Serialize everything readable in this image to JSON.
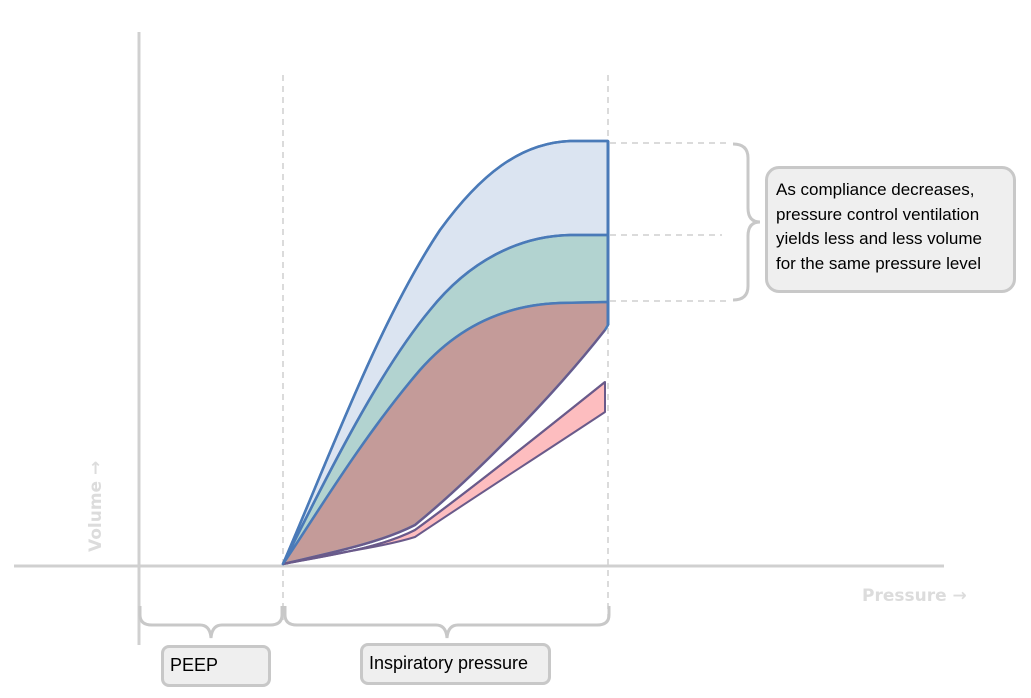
{
  "diagram": {
    "axes": {
      "x_label": "Pressure →",
      "y_label": "Volume →"
    },
    "callout": {
      "lines": [
        "As compliance decreases,",
        "pressure control ventilation",
        "yields less and less volume",
        "for the same pressure level"
      ]
    },
    "labels": {
      "peep": "PEEP",
      "inspiratory_pressure": "Inspiratory pressure"
    },
    "colors": {
      "outline": "#4a7ab8",
      "high_compliance_fill": "#dbe4f1",
      "medium_compliance_fill": "#b2d3d0",
      "low_compliance_fill": "#c49b99",
      "lowest_compliance_fill": "#fdbdbf",
      "axis": "#d0d0d0",
      "guide": "#cfcfcf"
    }
  }
}
